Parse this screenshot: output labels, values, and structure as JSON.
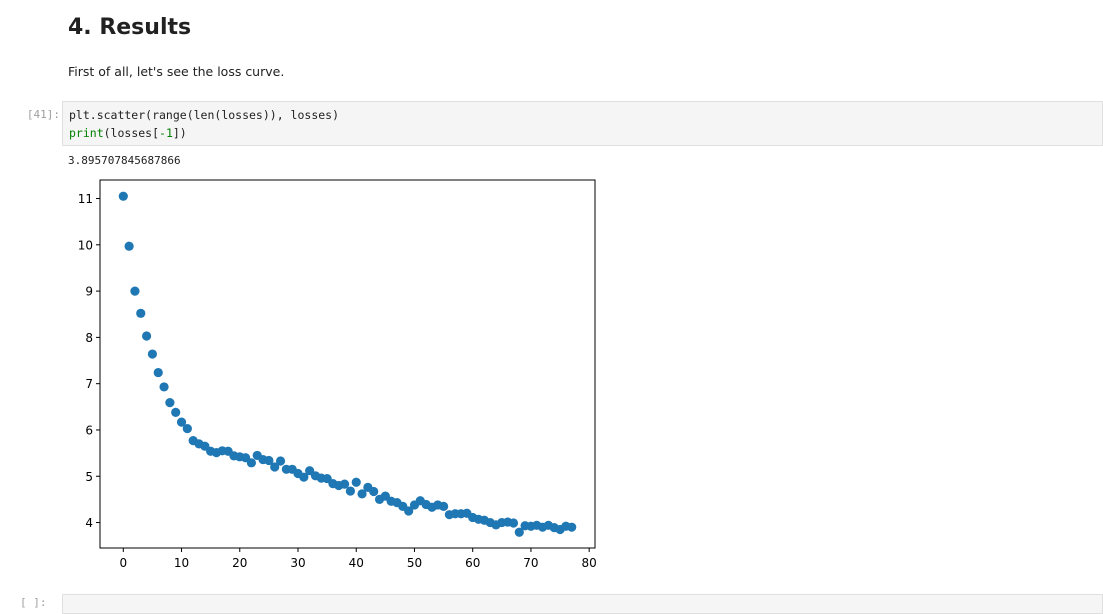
{
  "markdown": {
    "heading": "4. Results",
    "paragraph": "First of all, let's see the loss curve."
  },
  "code_cell": {
    "prompt": "[41]:",
    "line1": {
      "a": "plt.scatter(range(len(losses)), losses)"
    },
    "line2": {
      "print": "print",
      "open": "(losses[",
      "neg": "-1",
      "close": "])"
    }
  },
  "output": {
    "text": "3.895707845687866"
  },
  "next_cell": {
    "prompt": "[ ]:"
  },
  "colors": {
    "marker": "#1f77b4",
    "code_bg": "#f5f5f5",
    "prompt": "#9e9e9e"
  },
  "chart_data": {
    "type": "scatter",
    "xlim": [
      -4,
      81
    ],
    "ylim": [
      3.45,
      11.4
    ],
    "xticks": [
      0,
      10,
      20,
      30,
      40,
      50,
      60,
      70,
      80
    ],
    "yticks": [
      4,
      5,
      6,
      7,
      8,
      9,
      10,
      11
    ],
    "grid": false,
    "x": [
      0,
      1,
      2,
      3,
      4,
      5,
      6,
      7,
      8,
      9,
      10,
      11,
      12,
      13,
      14,
      15,
      16,
      17,
      18,
      19,
      20,
      21,
      22,
      23,
      24,
      25,
      26,
      27,
      28,
      29,
      30,
      31,
      32,
      33,
      34,
      35,
      36,
      37,
      38,
      39,
      40,
      41,
      42,
      43,
      44,
      45,
      46,
      47,
      48,
      49,
      50,
      51,
      52,
      53,
      54,
      55,
      56,
      57,
      58,
      59,
      60,
      61,
      62,
      63,
      64,
      65,
      66,
      67,
      68,
      69,
      70,
      71,
      72,
      73,
      74,
      75,
      76,
      77
    ],
    "y": [
      11.05,
      9.97,
      9.0,
      8.52,
      8.03,
      7.64,
      7.24,
      6.93,
      6.59,
      6.38,
      6.17,
      6.03,
      5.77,
      5.7,
      5.65,
      5.54,
      5.51,
      5.55,
      5.54,
      5.44,
      5.42,
      5.4,
      5.29,
      5.45,
      5.36,
      5.34,
      5.2,
      5.33,
      5.15,
      5.15,
      5.06,
      4.98,
      5.12,
      5.01,
      4.96,
      4.95,
      4.84,
      4.8,
      4.83,
      4.68,
      4.87,
      4.62,
      4.76,
      4.67,
      4.5,
      4.57,
      4.46,
      4.43,
      4.35,
      4.25,
      4.38,
      4.47,
      4.39,
      4.33,
      4.38,
      4.35,
      4.17,
      4.19,
      4.19,
      4.2,
      4.11,
      4.07,
      4.05,
      4.0,
      3.95,
      4.0,
      4.01,
      3.99,
      3.79,
      3.93,
      3.92,
      3.94,
      3.9,
      3.94,
      3.89,
      3.85,
      3.92,
      3.9
    ]
  }
}
